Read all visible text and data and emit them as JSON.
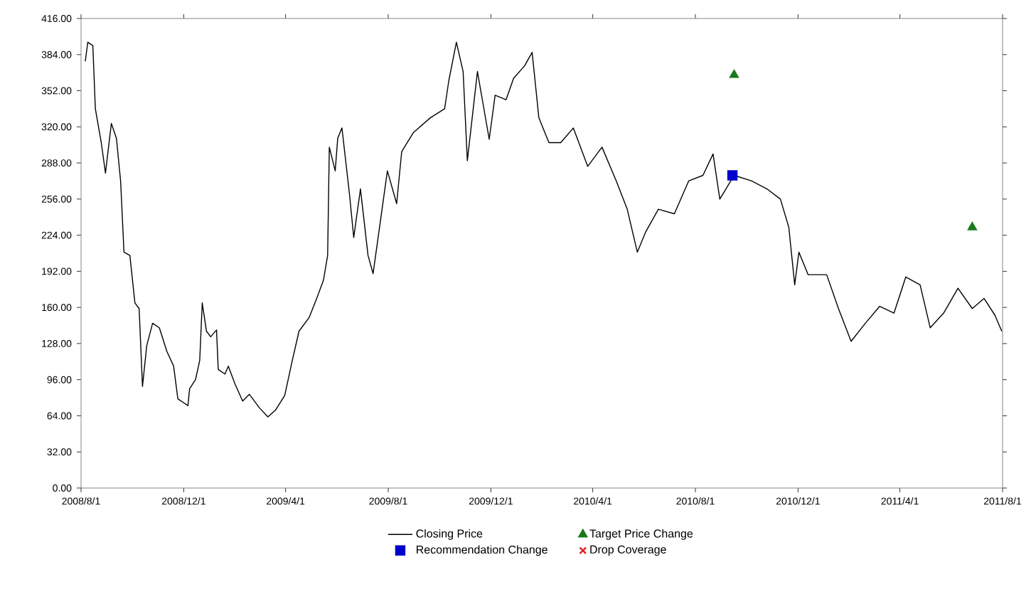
{
  "chart_data": {
    "type": "line",
    "legend": "bottom",
    "xlim": [
      "2008-08-01",
      "2011-08-01"
    ],
    "xticks": [
      {
        "value": "2008-08-01",
        "label": "2008/8/1"
      },
      {
        "value": "2008-12-01",
        "label": "2008/12/1"
      },
      {
        "value": "2009-04-01",
        "label": "2009/4/1"
      },
      {
        "value": "2009-08-01",
        "label": "2009/8/1"
      },
      {
        "value": "2009-12-01",
        "label": "2009/12/1"
      },
      {
        "value": "2010-04-01",
        "label": "2010/4/1"
      },
      {
        "value": "2010-08-01",
        "label": "2010/8/1"
      },
      {
        "value": "2010-12-01",
        "label": "2010/12/1"
      },
      {
        "value": "2011-04-01",
        "label": "2011/4/1"
      },
      {
        "value": "2011-08-01",
        "label": "2011/8/1"
      }
    ],
    "ylim": [
      0,
      416
    ],
    "yticks": [
      {
        "value": 0,
        "label": "0.00"
      },
      {
        "value": 32,
        "label": "32.00"
      },
      {
        "value": 64,
        "label": "64.00"
      },
      {
        "value": 96,
        "label": "96.00"
      },
      {
        "value": 128,
        "label": "128.00"
      },
      {
        "value": 160,
        "label": "160.00"
      },
      {
        "value": 192,
        "label": "192.00"
      },
      {
        "value": 224,
        "label": "224.00"
      },
      {
        "value": 256,
        "label": "256.00"
      },
      {
        "value": 288,
        "label": "288.00"
      },
      {
        "value": 320,
        "label": "320.00"
      },
      {
        "value": 352,
        "label": "352.00"
      },
      {
        "value": 384,
        "label": "384.00"
      },
      {
        "value": 416,
        "label": "416.00"
      }
    ],
    "series": [
      {
        "name": "Closing Price",
        "color": "#000000",
        "marker": "none",
        "x": [
          "2008-08-06",
          "2008-08-09",
          "2008-08-15",
          "2008-08-18",
          "2008-08-25",
          "2008-08-30",
          "2008-09-06",
          "2008-09-12",
          "2008-09-17",
          "2008-09-21",
          "2008-09-28",
          "2008-10-04",
          "2008-10-09",
          "2008-10-13",
          "2008-10-18",
          "2008-10-25",
          "2008-11-02",
          "2008-11-11",
          "2008-11-19",
          "2008-11-24",
          "2008-12-06",
          "2008-12-08",
          "2008-12-15",
          "2008-12-20",
          "2008-12-23",
          "2008-12-28",
          "2009-01-02",
          "2009-01-09",
          "2009-01-11",
          "2009-01-19",
          "2009-01-23",
          "2009-01-31",
          "2009-02-09",
          "2009-02-17",
          "2009-03-01",
          "2009-03-11",
          "2009-03-20",
          "2009-03-31",
          "2009-04-09",
          "2009-04-17",
          "2009-04-29",
          "2009-05-08",
          "2009-05-16",
          "2009-05-21",
          "2009-05-23",
          "2009-05-30",
          "2009-06-02",
          "2009-06-07",
          "2009-06-16",
          "2009-06-21",
          "2009-06-29",
          "2009-07-08",
          "2009-07-14",
          "2009-07-31",
          "2009-08-11",
          "2009-08-17",
          "2009-08-31",
          "2009-09-20",
          "2009-10-07",
          "2009-10-12",
          "2009-10-21",
          "2009-10-29",
          "2009-11-03",
          "2009-11-15",
          "2009-11-29",
          "2009-12-06",
          "2009-12-19",
          "2009-12-28",
          "2010-01-10",
          "2010-01-19",
          "2010-01-27",
          "2010-02-08",
          "2010-02-22",
          "2010-03-09",
          "2010-03-26",
          "2010-04-12",
          "2010-04-29",
          "2010-05-12",
          "2010-05-24",
          "2010-06-03",
          "2010-06-18",
          "2010-07-07",
          "2010-07-24",
          "2010-08-10",
          "2010-08-22",
          "2010-08-30",
          "2010-09-16",
          "2010-10-07",
          "2010-10-25",
          "2010-11-10",
          "2010-11-20",
          "2010-11-27",
          "2010-12-02",
          "2010-12-13",
          "2011-01-04",
          "2011-01-18",
          "2011-02-02",
          "2011-02-19",
          "2011-03-08",
          "2011-03-25",
          "2011-04-08",
          "2011-04-25",
          "2011-05-07",
          "2011-05-23",
          "2011-06-09",
          "2011-06-26",
          "2011-07-10",
          "2011-07-23",
          "2011-07-31"
        ],
        "values": [
          378,
          395,
          392,
          336,
          306,
          279,
          323,
          310,
          272,
          209,
          206,
          164,
          159,
          90,
          126,
          146,
          142,
          121,
          108,
          79,
          73,
          88,
          96,
          113,
          164,
          139,
          134,
          140,
          105,
          101,
          108,
          92,
          77,
          83,
          71,
          63,
          69,
          82,
          113,
          139,
          151,
          168,
          184,
          206,
          302,
          281,
          310,
          319,
          260,
          222,
          265,
          206,
          190,
          281,
          252,
          298,
          315,
          328,
          336,
          361,
          395,
          369,
          290,
          369,
          309,
          348,
          344,
          363,
          374,
          386,
          328,
          306,
          306,
          319,
          285,
          302,
          272,
          247,
          209,
          227,
          247,
          243,
          272,
          277,
          296,
          256,
          277,
          272,
          265,
          256,
          231,
          180,
          209,
          189,
          189,
          159,
          130,
          146,
          161,
          155,
          187,
          180,
          142,
          155,
          177,
          159,
          168,
          153,
          139
        ]
      },
      {
        "name": "Target Price Change",
        "type": "scatter",
        "color": "#1a7a1a",
        "marker": "triangle",
        "x": [
          "2010-09-16",
          "2011-06-26"
        ],
        "values": [
          366,
          231
        ]
      },
      {
        "name": "Recommendation Change",
        "type": "scatter",
        "color": "#0000cc",
        "marker": "square",
        "x": [
          "2010-09-14"
        ],
        "values": [
          277
        ]
      },
      {
        "name": "Drop Coverage",
        "type": "scatter",
        "color": "#dd2222",
        "marker": "cross"
      }
    ]
  }
}
